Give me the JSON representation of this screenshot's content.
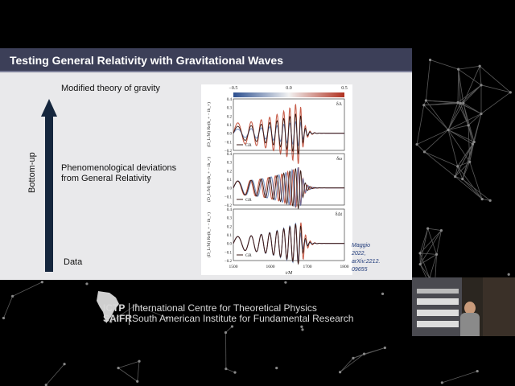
{
  "slide": {
    "title": "Testing General Relativity with Gravitational Waves",
    "axis_label": "Bottom-up",
    "top_label": "Modified theory of gravity",
    "mid_label_line1": "Phenomenological deviations",
    "mid_label_line2": "from General Relativity",
    "bottom_label": "Data",
    "citation": [
      "Maggio",
      "2022,",
      "arXiv:2212.",
      "09655"
    ]
  },
  "chart_data": [
    {
      "type": "line",
      "panel_tag": "δA",
      "legend": "GR",
      "ylabel": "(D_L/M) Re(h_+ − ih_×)",
      "ylim": [
        -0.2,
        0.4
      ],
      "yticks": [
        "0.4",
        "0.3",
        "0.2",
        "0.1",
        "0.0",
        "−0.1",
        "−0.2"
      ],
      "xlim": [
        1500,
        1800
      ],
      "colorbar_ticks": [
        "−0.5",
        "0.0",
        "0.5"
      ]
    },
    {
      "type": "line",
      "panel_tag": "δω",
      "legend": "GR",
      "ylabel": "(D_L/M) Re(h_+ − ih_×)",
      "ylim": [
        -0.2,
        0.4
      ],
      "yticks": [
        "0.4",
        "0.3",
        "0.2",
        "0.1",
        "0.0",
        "−0.1",
        "−0.2"
      ],
      "xlim": [
        1500,
        1800
      ]
    },
    {
      "type": "line",
      "panel_tag": "δΔt",
      "legend": "GR",
      "ylabel": "(D_L/M) Re(h_+ − ih_×)",
      "ylim": [
        -0.2,
        0.4
      ],
      "yticks": [
        "0.4",
        "0.3",
        "0.2",
        "0.1",
        "0.0",
        "−0.1",
        "−0.2"
      ],
      "xlim": [
        1500,
        1800
      ],
      "xticks": [
        "1500",
        "1600",
        "1700",
        "1800"
      ],
      "xlabel": "t/M"
    }
  ],
  "footer": {
    "logo_line1": "ICTP",
    "logo_line2": "SAIFR",
    "line1": "International Centre for Theoretical Physics",
    "line2": "South American Institute for Fundamental Research"
  },
  "colors": {
    "title_bar": "#3c3f58",
    "slide_bg": "#e9e9eb",
    "arrow": "#15263d",
    "gr_curve": "#3a1a14",
    "mod_red": "#c0452f",
    "mod_blue": "#4f6fae"
  }
}
